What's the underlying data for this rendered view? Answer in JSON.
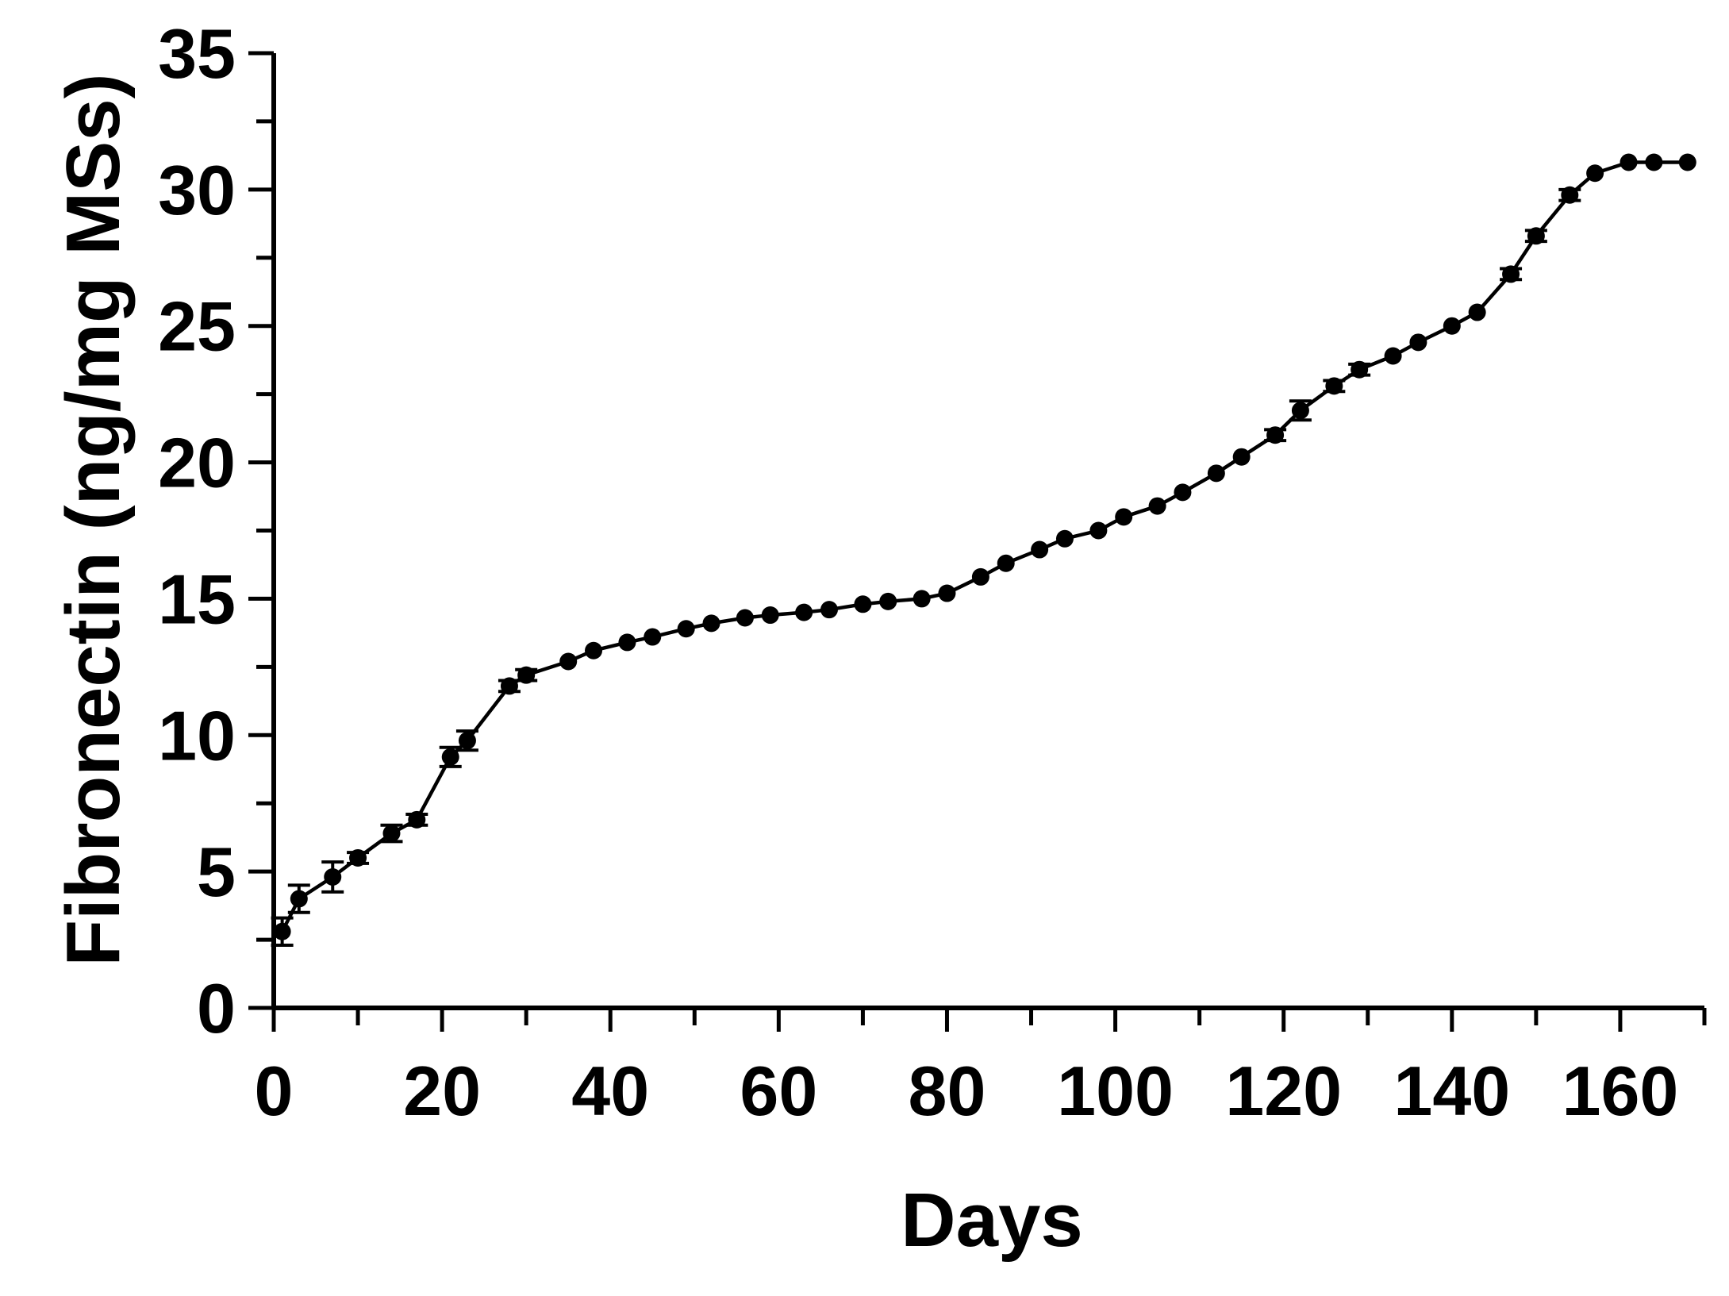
{
  "chart_data": {
    "type": "line",
    "title": "",
    "xlabel": "Days",
    "ylabel": "Fibronectin (ng/mg MSs)",
    "xlim": [
      0,
      170
    ],
    "ylim": [
      0,
      35
    ],
    "x_ticks": [
      0,
      20,
      40,
      60,
      80,
      100,
      120,
      140,
      160
    ],
    "x_tick_labels": [
      "0",
      "20",
      "40",
      "60",
      "80",
      "100",
      "120",
      "140",
      "160"
    ],
    "y_ticks": [
      0,
      5,
      10,
      15,
      20,
      25,
      30,
      35
    ],
    "y_tick_labels": [
      "0",
      "5",
      "10",
      "15",
      "20",
      "25",
      "30",
      "35"
    ],
    "grid": false,
    "legend": "none",
    "colors": {
      "line": "#000000",
      "marker": "#000000"
    },
    "series": [
      {
        "x": [
          1,
          3,
          7,
          10,
          14,
          17,
          21,
          23,
          28,
          30,
          35,
          38,
          42,
          45,
          49,
          52,
          56,
          59,
          63,
          66,
          70,
          73,
          77,
          80,
          84,
          87,
          91,
          94,
          98,
          101,
          105,
          108,
          112,
          115,
          119,
          122,
          126,
          129,
          133,
          136,
          140,
          143,
          147,
          150,
          154,
          157,
          161,
          164,
          168
        ],
        "y": [
          2.8,
          4.0,
          4.8,
          5.5,
          6.4,
          6.9,
          9.2,
          9.8,
          11.8,
          12.2,
          12.7,
          13.1,
          13.4,
          13.6,
          13.9,
          14.1,
          14.3,
          14.4,
          14.5,
          14.6,
          14.8,
          14.9,
          15.0,
          15.2,
          15.8,
          16.3,
          16.8,
          17.2,
          17.5,
          18.0,
          18.4,
          18.9,
          19.6,
          20.2,
          21.0,
          21.9,
          22.8,
          23.4,
          23.9,
          24.4,
          25.0,
          25.5,
          26.9,
          28.3,
          29.8,
          30.6,
          31.0,
          31.0,
          31.0
        ],
        "error": [
          0.5,
          0.5,
          0.55,
          0.2,
          0.3,
          0.2,
          0.35,
          0.35,
          0.2,
          0.2,
          0.15,
          0.15,
          0.15,
          0.15,
          0.1,
          0.1,
          0.1,
          0.1,
          0.1,
          0.1,
          0.1,
          0.1,
          0.1,
          0.1,
          0.15,
          0.15,
          0.15,
          0.15,
          0.15,
          0.15,
          0.15,
          0.15,
          0.15,
          0.15,
          0.2,
          0.35,
          0.2,
          0.2,
          0.15,
          0.15,
          0.15,
          0.15,
          0.2,
          0.2,
          0.2,
          0.1,
          0.1,
          0.1,
          0.1
        ]
      }
    ]
  }
}
